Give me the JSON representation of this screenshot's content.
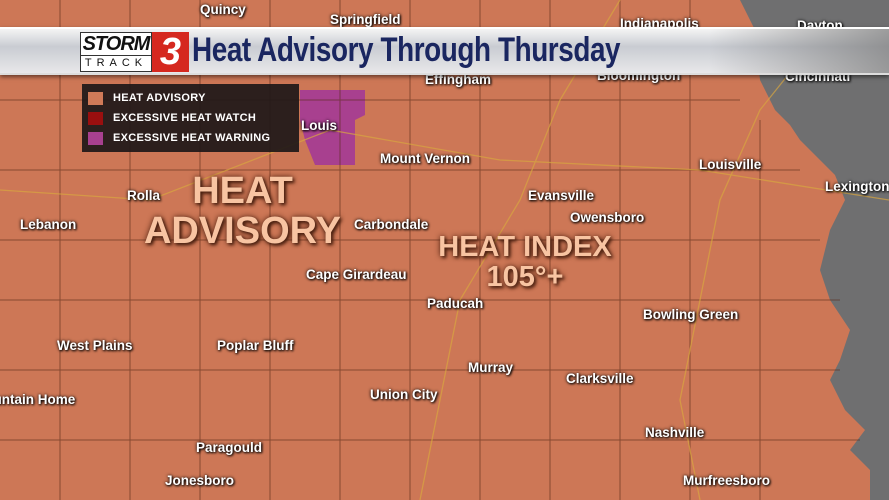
{
  "banner": {
    "logo_text": "STORM TRACK 3",
    "title": "Heat Advisory Through Thursday"
  },
  "legend": [
    {
      "label": "HEAT ADVISORY",
      "color": "#d07a58"
    },
    {
      "label": "EXCESSIVE HEAT WATCH",
      "color": "#9a0f0f"
    },
    {
      "label": "EXCESSIVE HEAT WARNING",
      "color": "#a8408f"
    }
  ],
  "overlays": {
    "advisory_line1": "HEAT",
    "advisory_line2": "ADVISORY",
    "index_line1": "HEAT INDEX",
    "index_line2": "105°+"
  },
  "cities": {
    "quincy": "Quincy",
    "springfield": "Springfield",
    "indianapolis": "Indianapolis",
    "dayton": "Dayton",
    "effingham": "Effingham",
    "bloomington": "Bloomington",
    "cincinnati": "Cincinnati",
    "st_louis": "Louis",
    "mount_vernon": "Mount Vernon",
    "louisville": "Louisville",
    "lexington": "Lexington",
    "rolla": "Rolla",
    "evansville": "Evansville",
    "owensboro": "Owensboro",
    "lebanon": "Lebanon",
    "carbondale": "Carbondale",
    "cape_girardeau": "Cape Girardeau",
    "paducah": "Paducah",
    "bowling_green": "Bowling Green",
    "west_plains": "West Plains",
    "poplar_bluff": "Poplar Bluff",
    "murray": "Murray",
    "clarksville": "Clarksville",
    "mountain_home": "Mountain Home",
    "union_city": "Union City",
    "nashville": "Nashville",
    "paragould": "Paragould",
    "jonesboro": "Jonesboro",
    "murfreesboro": "Murfreesboro"
  },
  "colors": {
    "advisory": "#cd7756",
    "outside": "#6f6f70",
    "county_lines": "#5a2a18",
    "roads": "#d8a640"
  }
}
